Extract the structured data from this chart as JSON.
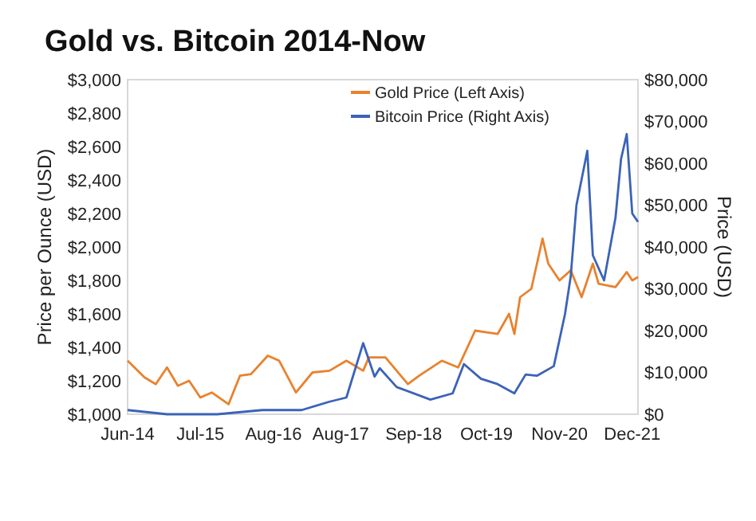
{
  "chart_data": {
    "type": "line",
    "title": "Gold vs. Bitcoin 2014-Now",
    "ylabel": "Price per Ounce (USD)",
    "y2label": "Price (USD)",
    "legend": "top",
    "grid": false,
    "xlim": [
      "2014-06",
      "2022-01"
    ],
    "xticks": [
      {
        "value": "2014-06",
        "label": "Jun-14"
      },
      {
        "value": "2015-07",
        "label": "Jul-15"
      },
      {
        "value": "2016-08",
        "label": "Aug-16"
      },
      {
        "value": "2017-08",
        "label": "Aug-17"
      },
      {
        "value": "2018-09",
        "label": "Sep-18"
      },
      {
        "value": "2019-10",
        "label": "Oct-19"
      },
      {
        "value": "2020-11",
        "label": "Nov-20"
      },
      {
        "value": "2021-12",
        "label": "Dec-21"
      }
    ],
    "ylim": [
      1000,
      3000
    ],
    "yticks": [
      {
        "value": 1000,
        "label": "$1,000"
      },
      {
        "value": 1200,
        "label": "$1,200"
      },
      {
        "value": 1400,
        "label": "$1,400"
      },
      {
        "value": 1600,
        "label": "$1,600"
      },
      {
        "value": 1800,
        "label": "$1,800"
      },
      {
        "value": 2000,
        "label": "$2,000"
      },
      {
        "value": 2200,
        "label": "$2,200"
      },
      {
        "value": 2400,
        "label": "$2,400"
      },
      {
        "value": 2600,
        "label": "$2,600"
      },
      {
        "value": 2800,
        "label": "$2,800"
      },
      {
        "value": 3000,
        "label": "$3,000"
      }
    ],
    "y2lim": [
      0,
      80000
    ],
    "y2ticks": [
      {
        "value": 0,
        "label": "$0"
      },
      {
        "value": 10000,
        "label": "$10,000"
      },
      {
        "value": 20000,
        "label": "$20,000"
      },
      {
        "value": 30000,
        "label": "$30,000"
      },
      {
        "value": 40000,
        "label": "$40,000"
      },
      {
        "value": 50000,
        "label": "$50,000"
      },
      {
        "value": 60000,
        "label": "$60,000"
      },
      {
        "value": 70000,
        "label": "$70,000"
      },
      {
        "value": 80000,
        "label": "$80,000"
      }
    ],
    "series": [
      {
        "name": "Gold Price (Left Axis)",
        "color": "#e8822e",
        "x": [
          "2014-06",
          "2014-09",
          "2014-11",
          "2015-01",
          "2015-03",
          "2015-05",
          "2015-07",
          "2015-09",
          "2015-12",
          "2016-02",
          "2016-04",
          "2016-07",
          "2016-09",
          "2016-12",
          "2017-03",
          "2017-06",
          "2017-09",
          "2017-12",
          "2018-01",
          "2018-04",
          "2018-08",
          "2018-10",
          "2019-02",
          "2019-05",
          "2019-08",
          "2019-10",
          "2019-12",
          "2020-02",
          "2020-03",
          "2020-04",
          "2020-06",
          "2020-08",
          "2020-09",
          "2020-11",
          "2021-01",
          "2021-03",
          "2021-05",
          "2021-06",
          "2021-09",
          "2021-11",
          "2021-12",
          "2022-01"
        ],
        "values": [
          1320,
          1220,
          1180,
          1280,
          1170,
          1200,
          1100,
          1130,
          1060,
          1230,
          1240,
          1350,
          1320,
          1130,
          1250,
          1260,
          1320,
          1260,
          1340,
          1340,
          1180,
          1230,
          1320,
          1280,
          1500,
          1490,
          1480,
          1600,
          1480,
          1700,
          1750,
          2050,
          1900,
          1800,
          1860,
          1700,
          1900,
          1780,
          1760,
          1850,
          1800,
          1820
        ]
      },
      {
        "name": "Bitcoin Price (Right Axis)",
        "color": "#3b63b8",
        "axis": "y2",
        "x": [
          "2014-06",
          "2015-01",
          "2015-10",
          "2016-06",
          "2017-01",
          "2017-06",
          "2017-09",
          "2017-12",
          "2018-02",
          "2018-03",
          "2018-06",
          "2018-12",
          "2019-04",
          "2019-06",
          "2019-09",
          "2019-12",
          "2020-03",
          "2020-05",
          "2020-07",
          "2020-10",
          "2020-12",
          "2021-01",
          "2021-02",
          "2021-04",
          "2021-05",
          "2021-07",
          "2021-09",
          "2021-10",
          "2021-11",
          "2021-12",
          "2022-01"
        ],
        "values": [
          1000,
          0,
          0,
          1000,
          1000,
          3000,
          4000,
          17000,
          9000,
          11000,
          6500,
          3500,
          5000,
          12000,
          8500,
          7200,
          5000,
          9500,
          9200,
          11500,
          24000,
          33000,
          50000,
          63000,
          38000,
          32000,
          47000,
          61000,
          67000,
          48000,
          46000
        ]
      }
    ]
  }
}
